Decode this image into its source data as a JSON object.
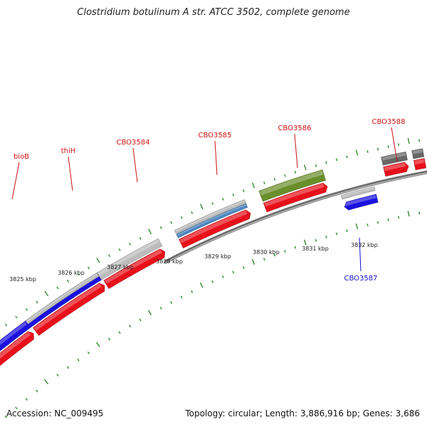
{
  "title": "Clostridium botulinum A str. ATCC 3502, complete genome",
  "accession": "Accession: NC_009495",
  "topology": "Topology: circular; Length: 3,886,916 bp; Genes: 3,686",
  "colors": {
    "forward_cds": "#e8101a",
    "reverse_cds": "#1a10e0",
    "gray_feature": "#bcbcbc",
    "blue_feature": "#4a86c0",
    "green_feature": "#6a8e2a",
    "dark_feature": "#666666",
    "backbone": "#8a8a8a",
    "tick": "#2f8a2f",
    "label_forward": "#cc1111",
    "label_reverse": "#1111cc"
  },
  "scale": {
    "unit": "kbp",
    "labels": [
      "3825 kbp",
      "3826 kbp",
      "3827 kbp",
      "3828 kbp",
      "3829 kbp",
      "3830 kbp",
      "3831 kbp",
      "3832 kbp"
    ]
  },
  "gene_labels": [
    {
      "name": "bioB",
      "strand": "forward"
    },
    {
      "name": "thiH",
      "strand": "forward"
    },
    {
      "name": "CBO3584",
      "strand": "forward"
    },
    {
      "name": "CBO3585",
      "strand": "forward"
    },
    {
      "name": "CBO3586",
      "strand": "forward"
    },
    {
      "name": "CBO3588",
      "strand": "forward"
    },
    {
      "name": "CBO3587",
      "strand": "reverse"
    }
  ]
}
